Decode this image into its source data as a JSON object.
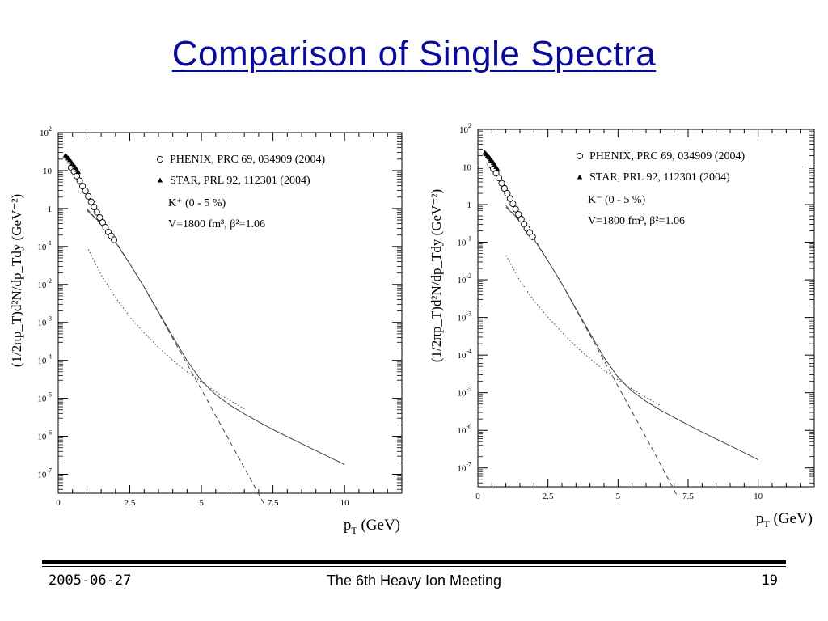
{
  "slide": {
    "title": "Comparison of Single Spectra",
    "footer": {
      "date": "2005-06-27",
      "event": "The 6th Heavy Ion Meeting",
      "page": "19"
    }
  },
  "chart_data": [
    {
      "type": "scatter",
      "ylabel": "(1/2πp_T)d²N/dp_Tdy (GeV⁻²)",
      "xlabel": "p_T (GeV)",
      "xlim": [
        0,
        12
      ],
      "ylim_log10": [
        -7.5,
        2.0
      ],
      "log_y": true,
      "x_ticks": [
        "0",
        "2.5",
        "5",
        "7.5",
        "10"
      ],
      "y_ticks": [
        "10^2",
        "10",
        "1",
        "10^-1",
        "10^-2",
        "10^-3",
        "10^-4",
        "10^-5",
        "10^-6",
        "10^-7"
      ],
      "legend": {
        "entries": [
          "PHENIX, PRC 69, 034909 (2004)",
          "STAR, PRL 92, 112301 (2004)"
        ],
        "line3": "K⁺ (0 - 5 %)",
        "line4": "V=1800 fm³, β²=1.06"
      },
      "series": [
        {
          "name": "PHENIX, PRC 69, 034909 (2004)",
          "marker": "open-circle",
          "x": [
            0.45,
            0.55,
            0.65,
            0.75,
            0.85,
            0.95,
            1.05,
            1.15,
            1.25,
            1.35,
            1.45,
            1.55,
            1.65,
            1.75,
            1.85,
            1.95
          ],
          "y": [
            12,
            9.5,
            7.2,
            5.4,
            3.9,
            2.9,
            2.1,
            1.5,
            1.1,
            0.8,
            0.58,
            0.43,
            0.32,
            0.24,
            0.19,
            0.15
          ]
        },
        {
          "marker": "filled-triangle",
          "x": [
            0.25,
            0.3,
            0.35,
            0.4,
            0.45,
            0.5,
            0.55,
            0.6,
            0.65,
            0.7
          ],
          "y": [
            25,
            23,
            21,
            19,
            17,
            15,
            13.5,
            12,
            10.5,
            9.2
          ]
        },
        {
          "style": "solid",
          "x": [
            1.0,
            1.5,
            2.0,
            2.5,
            3.0,
            3.5,
            4.0,
            4.5,
            5.0,
            5.5,
            6.0,
            6.5,
            7.0,
            7.5,
            8.0,
            8.5,
            9.0,
            9.5,
            10.0
          ],
          "y": [
            0.9,
            0.4,
            0.13,
            0.035,
            0.0085,
            0.0019,
            0.00042,
            9.8e-05,
            2.9e-05,
            1.25e-05,
            6.6e-06,
            3.9e-06,
            2.4e-06,
            1.5e-06,
            9.8e-07,
            6.4e-07,
            4.2e-07,
            2.75e-07,
            1.8e-07
          ]
        },
        {
          "style": "dashed",
          "x": [
            1.0,
            2.0,
            3.0,
            4.0,
            5.0,
            6.0,
            7.0,
            7.2
          ],
          "y": [
            1.0,
            0.14,
            0.0085,
            0.00038,
            1.7e-05,
            7.2e-07,
            3e-08,
            1.6e-08
          ]
        },
        {
          "style": "dotted",
          "x": [
            1.0,
            1.5,
            2.0,
            2.5,
            3.0,
            3.5,
            4.0,
            4.5,
            5.0,
            5.5,
            6.0,
            6.5
          ],
          "y": [
            0.1,
            0.018,
            0.0045,
            0.0014,
            0.00053,
            0.00022,
            0.0001,
            5e-05,
            2.7e-05,
            1.5e-05,
            8.8e-06,
            5.3e-06
          ]
        }
      ]
    },
    {
      "type": "scatter",
      "ylabel": "(1/2πp_T)d²N/dp_Tdy (GeV⁻²)",
      "xlabel": "p_T (GeV)",
      "xlim": [
        0,
        12
      ],
      "ylim_log10": [
        -7.5,
        2.0
      ],
      "log_y": true,
      "x_ticks": [
        "0",
        "2.5",
        "5",
        "7.5",
        "10"
      ],
      "y_ticks": [
        "10^2",
        "10",
        "1",
        "10^-1",
        "10^-2",
        "10^-3",
        "10^-4",
        "10^-5",
        "10^-6",
        "10^-7"
      ],
      "legend": {
        "entries": [
          "PHENIX, PRC 69, 034909 (2004)",
          "STAR, PRL 92, 112301 (2004)"
        ],
        "line3": "K⁻ (0 - 5 %)",
        "line4": "V=1800 fm³, β²=1.06"
      },
      "series": [
        {
          "name": "PHENIX, PRC 69, 034909 (2004)",
          "marker": "open-circle",
          "x": [
            0.45,
            0.55,
            0.65,
            0.75,
            0.85,
            0.95,
            1.05,
            1.15,
            1.25,
            1.35,
            1.45,
            1.55,
            1.65,
            1.75,
            1.85,
            1.95
          ],
          "y": [
            11.5,
            9.0,
            6.8,
            5.1,
            3.7,
            2.7,
            2.0,
            1.45,
            1.05,
            0.76,
            0.55,
            0.41,
            0.3,
            0.23,
            0.18,
            0.14
          ]
        },
        {
          "marker": "filled-triangle",
          "x": [
            0.25,
            0.3,
            0.35,
            0.4,
            0.45,
            0.5,
            0.55,
            0.6,
            0.65,
            0.7
          ],
          "y": [
            24,
            22,
            20,
            18,
            16,
            14.5,
            13,
            11.5,
            10,
            8.8
          ]
        },
        {
          "style": "solid",
          "x": [
            1.0,
            1.5,
            2.0,
            2.5,
            3.0,
            3.5,
            4.0,
            4.5,
            5.0,
            5.5,
            6.0,
            6.5,
            7.0,
            7.5,
            8.0,
            8.5,
            9.0,
            9.5,
            10.0
          ],
          "y": [
            0.85,
            0.38,
            0.12,
            0.032,
            0.0078,
            0.0017,
            0.00038,
            8.6e-05,
            2.6e-05,
            1.1e-05,
            5.9e-06,
            3.5e-06,
            2.2e-06,
            1.4e-06,
            9e-07,
            5.9e-07,
            3.9e-07,
            2.55e-07,
            1.65e-07
          ]
        },
        {
          "style": "dashed",
          "x": [
            1.0,
            2.0,
            3.0,
            4.0,
            5.0,
            6.0,
            7.0,
            7.1
          ],
          "y": [
            0.95,
            0.13,
            0.0078,
            0.00034,
            1.5e-05,
            6.5e-07,
            2.6e-08,
            1.9e-08
          ]
        },
        {
          "style": "dotted",
          "x": [
            1.0,
            1.5,
            2.0,
            2.5,
            3.0,
            3.5,
            4.0,
            4.5,
            5.0,
            5.5,
            6.0,
            6.5
          ],
          "y": [
            0.045,
            0.0095,
            0.0028,
            0.001,
            0.0004,
            0.00017,
            8e-05,
            4e-05,
            2.2e-05,
            1.25e-05,
            7.5e-06,
            4.6e-06
          ]
        }
      ]
    }
  ]
}
